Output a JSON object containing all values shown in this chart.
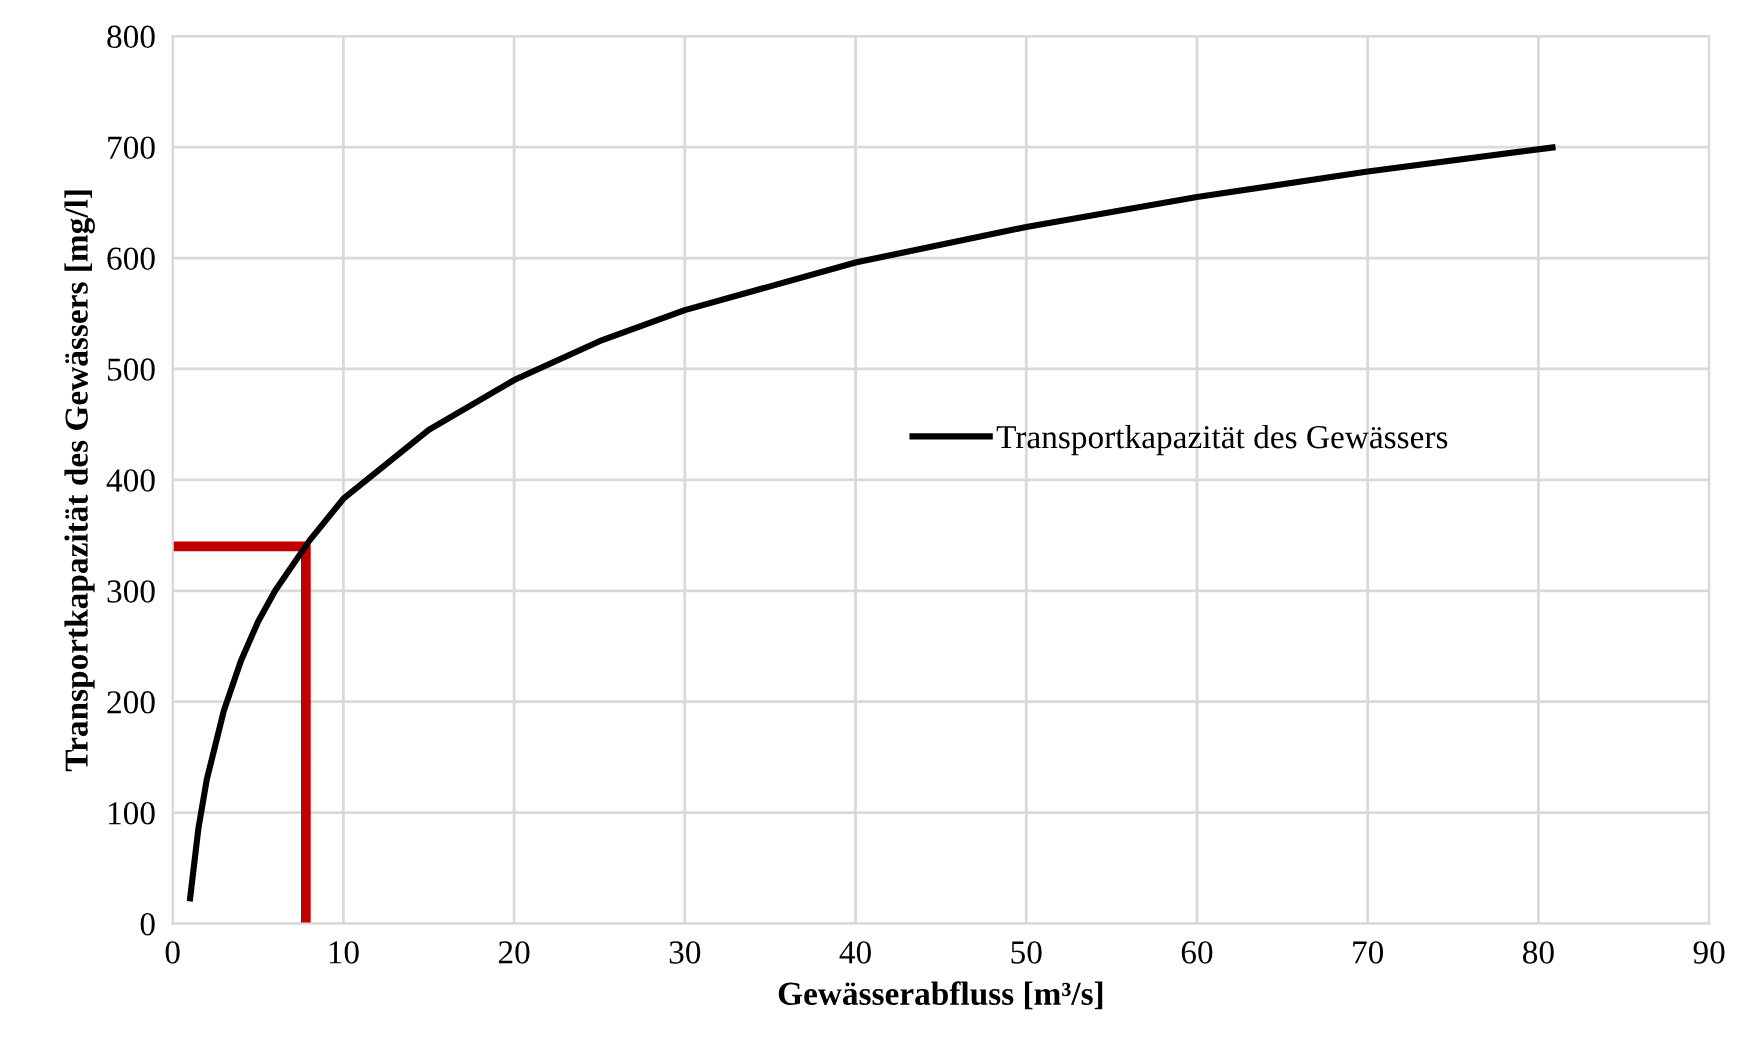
{
  "chart_data": {
    "type": "line",
    "xlabel": "Gewässerabfluss [m³/s]",
    "ylabel": "Transportkapazität des Gewässers [mg/l]",
    "xlim": [
      0,
      90
    ],
    "xticks": [
      0,
      10,
      20,
      30,
      40,
      50,
      60,
      70,
      80,
      90
    ],
    "ylim": [
      0,
      800
    ],
    "yticks": [
      0,
      100,
      200,
      300,
      400,
      500,
      600,
      700,
      800
    ],
    "grid": true,
    "legend": "right",
    "marker": "none",
    "line_style": "solid",
    "series": [
      {
        "name": "Transportkapazität des Gewässers",
        "color": "#000000",
        "x": [
          1,
          1.5,
          2,
          3,
          4,
          5,
          6,
          8,
          10,
          15,
          20,
          25,
          30,
          40,
          50,
          60,
          70,
          81
        ],
        "values": [
          20,
          85,
          130,
          192,
          237,
          272,
          300,
          345,
          383,
          445,
          490,
          525,
          553,
          596,
          628,
          655,
          678,
          700
        ]
      },
      {
        "color": "#c00000",
        "x": [
          0,
          7.8,
          7.8
        ],
        "values": [
          340,
          340,
          0
        ]
      }
    ]
  }
}
